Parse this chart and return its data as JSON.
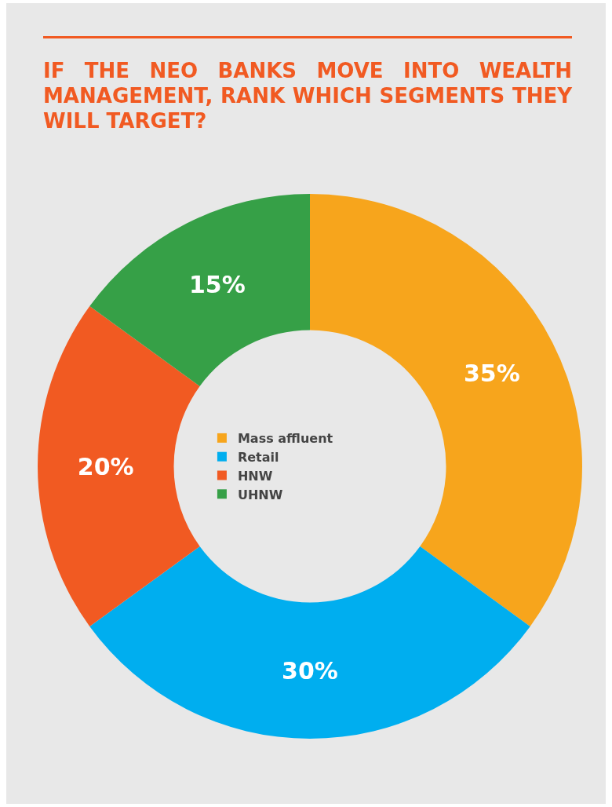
{
  "chart_data": {
    "type": "donut",
    "title": "IF THE NEO BANKS MOVE INTO WEALTH MANAGEMENT, RANK WHICH SEGMENTS THEY WILL TARGET?",
    "categories": [
      "Mass affluent",
      "Retail",
      "HNW",
      "UHNW"
    ],
    "values": [
      35,
      30,
      20,
      15
    ],
    "value_labels": [
      "35%",
      "30%",
      "20%",
      "15%"
    ],
    "colors": [
      "#f7a51c",
      "#00aeef",
      "#f15a22",
      "#36a047"
    ],
    "legend": "center"
  }
}
